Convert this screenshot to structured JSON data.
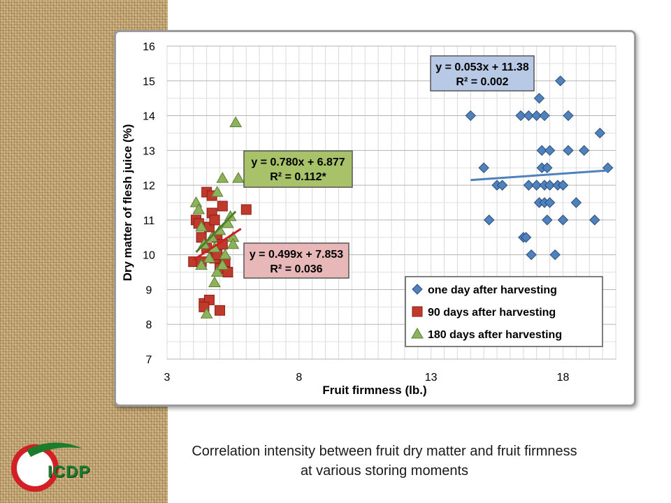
{
  "caption": {
    "line1": "Correlation intensity between fruit dry matter and fruit firmness",
    "line2": "at various storing moments"
  },
  "logo": {
    "text": "ICDP"
  },
  "colors": {
    "series1": "#4f81bd",
    "series2": "#c0392b",
    "series3": "#8db35a",
    "trend1": "#4f81bd",
    "trend2": "#cc1f1f",
    "trend3": "#4e7d2a",
    "box1_fill": "#b8c9e6",
    "box2_fill": "#a8c26a",
    "box3_fill": "#e8b8b8",
    "logo_red": "#d32027",
    "logo_green": "#1b7d2c"
  },
  "chart_data": {
    "type": "scatter",
    "xlabel": "Fruit firmness (lb.)",
    "ylabel": "Dry matter of flesh juice (%)",
    "xlim": [
      3,
      20
    ],
    "ylim": [
      7,
      16
    ],
    "x_ticks": [
      3,
      8,
      13,
      18
    ],
    "y_ticks": [
      7,
      8,
      9,
      10,
      11,
      12,
      13,
      14,
      15,
      16
    ],
    "grid": true,
    "legend_position": "bottom-right",
    "series": [
      {
        "name": "one day after harvesting",
        "marker": "diamond",
        "points": [
          [
            14.5,
            14.0
          ],
          [
            15.0,
            12.5
          ],
          [
            15.2,
            11.0
          ],
          [
            15.5,
            12.0
          ],
          [
            15.7,
            12.0
          ],
          [
            16.4,
            14.0
          ],
          [
            16.5,
            10.5
          ],
          [
            16.6,
            10.5
          ],
          [
            16.7,
            12.0
          ],
          [
            16.7,
            14.0
          ],
          [
            16.8,
            10.0
          ],
          [
            17.0,
            12.0
          ],
          [
            17.0,
            14.0
          ],
          [
            17.1,
            11.5
          ],
          [
            17.2,
            12.5
          ],
          [
            17.2,
            13.0
          ],
          [
            17.3,
            11.5
          ],
          [
            17.3,
            12.0
          ],
          [
            17.3,
            14.0
          ],
          [
            17.4,
            12.5
          ],
          [
            17.4,
            11.0
          ],
          [
            17.5,
            11.5
          ],
          [
            17.5,
            13.0
          ],
          [
            17.5,
            12.0
          ],
          [
            17.8,
            12.0
          ],
          [
            17.7,
            10.0
          ],
          [
            17.9,
            15.0
          ],
          [
            18.0,
            11.0
          ],
          [
            18.0,
            12.0
          ],
          [
            18.2,
            14.0
          ],
          [
            18.2,
            13.0
          ],
          [
            18.5,
            11.5
          ],
          [
            18.8,
            13.0
          ],
          [
            19.2,
            11.0
          ],
          [
            19.4,
            13.5
          ],
          [
            19.7,
            12.5
          ],
          [
            17.1,
            14.5
          ]
        ]
      },
      {
        "name": "90 days after harvesting",
        "marker": "square",
        "points": [
          [
            4.0,
            9.8
          ],
          [
            4.1,
            11.0
          ],
          [
            4.3,
            9.8
          ],
          [
            4.3,
            10.5
          ],
          [
            4.4,
            8.6
          ],
          [
            4.5,
            10.2
          ],
          [
            4.5,
            11.8
          ],
          [
            4.6,
            10.8
          ],
          [
            4.6,
            8.7
          ],
          [
            4.7,
            11.2
          ],
          [
            4.8,
            9.9
          ],
          [
            4.8,
            11.0
          ],
          [
            4.9,
            10.0
          ],
          [
            4.9,
            10.5
          ],
          [
            5.0,
            9.6
          ],
          [
            5.0,
            8.4
          ],
          [
            5.1,
            11.4
          ],
          [
            5.1,
            10.3
          ],
          [
            5.2,
            9.8
          ],
          [
            5.3,
            9.5
          ],
          [
            4.7,
            11.7
          ],
          [
            4.2,
            10.9
          ],
          [
            6.0,
            11.3
          ],
          [
            4.4,
            8.5
          ]
        ]
      },
      {
        "name": "180 days after harvesting",
        "marker": "triangle",
        "points": [
          [
            4.1,
            11.5
          ],
          [
            4.2,
            11.3
          ],
          [
            4.3,
            10.8
          ],
          [
            4.3,
            9.7
          ],
          [
            4.4,
            10.3
          ],
          [
            4.5,
            8.3
          ],
          [
            4.6,
            9.9
          ],
          [
            4.7,
            10.5
          ],
          [
            4.8,
            9.2
          ],
          [
            4.9,
            9.5
          ],
          [
            4.9,
            11.8
          ],
          [
            5.0,
            10.7
          ],
          [
            5.1,
            12.2
          ],
          [
            5.1,
            9.7
          ],
          [
            5.2,
            10.0
          ],
          [
            5.3,
            10.9
          ],
          [
            5.4,
            11.1
          ],
          [
            5.5,
            10.5
          ],
          [
            5.6,
            13.8
          ],
          [
            5.7,
            12.2
          ],
          [
            4.8,
            10.2
          ],
          [
            5.5,
            10.3
          ]
        ]
      }
    ],
    "trendlines": [
      {
        "series": "one day after harvesting",
        "x": [
          14.5,
          19.7
        ],
        "equation": "y = 0.053x + 11.38",
        "r2": "R² = 0.002"
      },
      {
        "series": "90 days after harvesting",
        "x": [
          4.0,
          5.8
        ],
        "equation": "y = 0.499x + 7.853",
        "r2": "R² = 0.036"
      },
      {
        "series": "180 days after harvesting",
        "x": [
          4.1,
          5.6
        ],
        "equation": "y = 0.780x + 6.877",
        "r2": "R² = 0.112*"
      }
    ]
  }
}
